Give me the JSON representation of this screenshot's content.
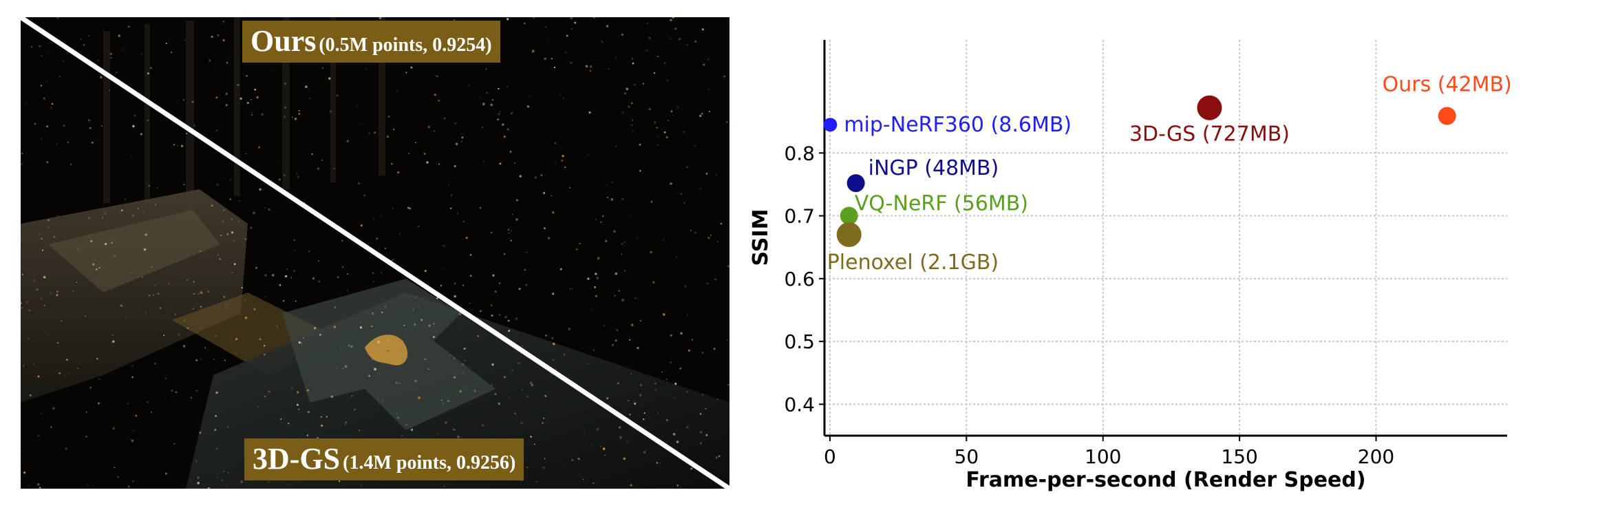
{
  "photo": {
    "top_caption": {
      "name": "Ours",
      "detail": "(0.5M points, 0.9254)"
    },
    "bottom_caption": {
      "name": "3D-GS",
      "detail": "(1.4M points, 0.9256)"
    }
  },
  "chart_data": {
    "type": "scatter",
    "xlabel": "Frame-per-second (Render Speed)",
    "ylabel": "SSIM",
    "xlim": [
      -2,
      248
    ],
    "ylim": [
      0.35,
      0.98
    ],
    "xticks": [
      0,
      50,
      100,
      150,
      200
    ],
    "yticks": [
      0.4,
      0.5,
      0.6,
      0.7,
      0.8
    ],
    "grid": true,
    "points": [
      {
        "label": "mip-NeRF360 (8.6MB)",
        "x": 0.1,
        "y": 0.845,
        "color": "#1f1fff",
        "size": "small"
      },
      {
        "label": "iNGP (48MB)",
        "x": 9.5,
        "y": 0.752,
        "color": "#0f0f8c",
        "size": "medium"
      },
      {
        "label": "VQ-NeRF (56MB)",
        "x": 7,
        "y": 0.7,
        "color": "#5aa01e",
        "size": "medium"
      },
      {
        "label": "Plenoxel (2.1GB)",
        "x": 7,
        "y": 0.67,
        "color": "#7f6b1e",
        "size": "large"
      },
      {
        "label": "3D-GS (727MB)",
        "x": 139,
        "y": 0.872,
        "color": "#8a0e0e",
        "size": "large"
      },
      {
        "label": "Ours (42MB)",
        "x": 226,
        "y": 0.859,
        "color": "#ff4a1c",
        "size": "medium"
      }
    ]
  }
}
